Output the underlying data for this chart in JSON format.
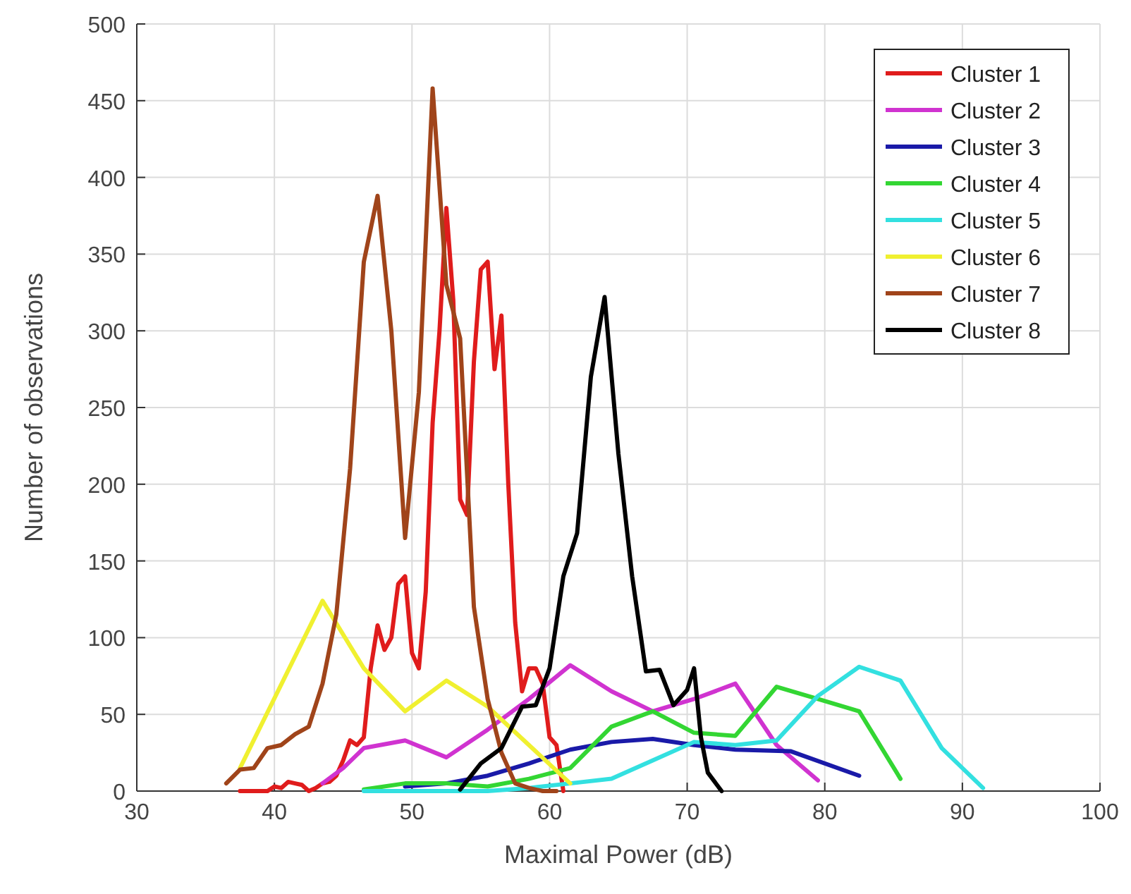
{
  "chart_data": {
    "type": "line",
    "xlabel": "Maximal Power (dB)",
    "ylabel": "Number of observations",
    "xlim": [
      30,
      100
    ],
    "ylim": [
      0,
      500
    ],
    "xticks": [
      30,
      40,
      50,
      60,
      70,
      80,
      90,
      100
    ],
    "yticks": [
      0,
      50,
      100,
      150,
      200,
      250,
      300,
      350,
      400,
      450,
      500
    ],
    "grid": true,
    "legend": "top right",
    "line_style": "solid",
    "marker": "none",
    "series": [
      {
        "name": "Cluster 1",
        "color": "#e01c1c",
        "x": [
          37.5,
          38.5,
          39.5,
          40,
          40.5,
          41,
          41.5,
          42,
          42.5,
          43,
          43.5,
          44,
          44.5,
          45,
          45.5,
          46,
          46.5,
          47,
          47.5,
          48,
          48.5,
          49,
          49.5,
          50,
          50.5,
          51,
          51.5,
          52,
          52.5,
          53,
          53.5,
          54,
          54.5,
          55,
          55.5,
          56,
          56.5,
          57,
          57.5,
          58,
          58.5,
          59,
          59.5,
          60,
          60.5,
          61
        ],
        "values": [
          0,
          0,
          0,
          3,
          2,
          6,
          5,
          4,
          0,
          2,
          5,
          6,
          10,
          20,
          33,
          30,
          35,
          80,
          108,
          92,
          100,
          135,
          140,
          90,
          80,
          130,
          240,
          300,
          380,
          320,
          190,
          180,
          280,
          340,
          345,
          275,
          310,
          200,
          110,
          65,
          80,
          80,
          70,
          35,
          30,
          0
        ]
      },
      {
        "name": "Cluster 2",
        "color": "#d033d0",
        "x": [
          43.5,
          45,
          46.5,
          49.5,
          52.5,
          55.5,
          58.5,
          61.5,
          64.5,
          67.5,
          70.5,
          73.5,
          76.5,
          79.5
        ],
        "values": [
          5,
          15,
          28,
          33,
          22,
          40,
          60,
          82,
          65,
          52,
          60,
          70,
          30,
          7
        ]
      },
      {
        "name": "Cluster 3",
        "color": "#1a1aa8",
        "x": [
          49.5,
          52.5,
          55.5,
          58.5,
          61.5,
          64.5,
          67.5,
          70.5,
          73.5,
          77.5,
          82.5
        ],
        "values": [
          3,
          5,
          10,
          18,
          27,
          32,
          34,
          30,
          27,
          26,
          10
        ]
      },
      {
        "name": "Cluster 4",
        "color": "#33d633",
        "x": [
          46.5,
          49.5,
          52.5,
          55.5,
          58.5,
          61.5,
          64.5,
          67.5,
          70.5,
          73.5,
          76.5,
          79.5,
          82.5,
          85.5
        ],
        "values": [
          1,
          5,
          5,
          3,
          8,
          15,
          42,
          52,
          38,
          36,
          68,
          60,
          52,
          8
        ]
      },
      {
        "name": "Cluster 5",
        "color": "#33e0e0",
        "x": [
          46.5,
          49.5,
          52.5,
          55.5,
          58.5,
          61.5,
          64.5,
          67.5,
          70.5,
          73.5,
          76.5,
          79.5,
          82.5,
          85.5,
          88.5,
          91.5
        ],
        "values": [
          0,
          0,
          0,
          0,
          2,
          5,
          8,
          20,
          32,
          30,
          33,
          62,
          81,
          72,
          28,
          2
        ]
      },
      {
        "name": "Cluster 6",
        "color": "#f0f030",
        "x": [
          37.5,
          43.5,
          46.5,
          49.5,
          52.5,
          55.5,
          58.5,
          61.5
        ],
        "values": [
          15,
          124,
          80,
          52,
          72,
          55,
          30,
          5
        ]
      },
      {
        "name": "Cluster 7",
        "color": "#a0441a",
        "x": [
          36.5,
          37.5,
          38.5,
          39.5,
          40.5,
          41.5,
          42.5,
          43.5,
          44.5,
          45.5,
          46.5,
          47.5,
          48.5,
          49.5,
          50.5,
          51.5,
          52.5,
          53.5,
          54.5,
          55.5,
          56.5,
          57.5,
          58.5,
          59.5,
          60.5
        ],
        "values": [
          5,
          14,
          15,
          28,
          30,
          37,
          42,
          70,
          115,
          210,
          345,
          388,
          300,
          165,
          260,
          458,
          330,
          295,
          120,
          60,
          25,
          5,
          2,
          0,
          0
        ]
      },
      {
        "name": "Cluster 8",
        "color": "#000000",
        "x": [
          53.5,
          55,
          56.5,
          58,
          59,
          60,
          61,
          62,
          63,
          64,
          65,
          66,
          67,
          68,
          69,
          70,
          70.5,
          71,
          71.5,
          72.5
        ],
        "values": [
          1,
          18,
          28,
          55,
          56,
          80,
          140,
          168,
          270,
          322,
          220,
          140,
          78,
          79,
          56,
          66,
          80,
          35,
          12,
          0
        ]
      }
    ]
  }
}
